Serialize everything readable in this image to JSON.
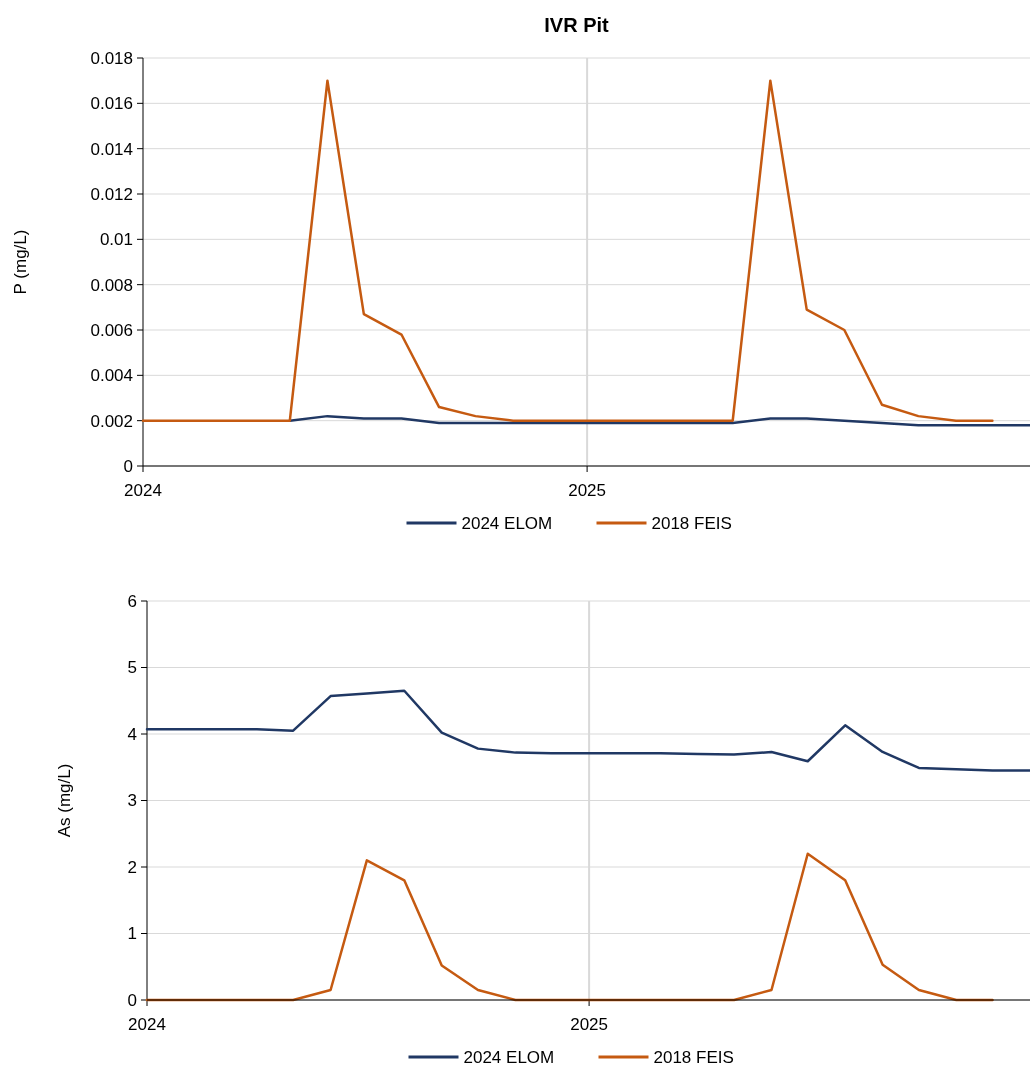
{
  "chart_data": [
    {
      "type": "line",
      "title": "IVR Pit",
      "ylabel": "P (mg/L)",
      "x": [
        "2024-01",
        "2024-02",
        "2024-03",
        "2024-04",
        "2024-05",
        "2024-06",
        "2024-07",
        "2024-08",
        "2024-09",
        "2024-10",
        "2024-11",
        "2024-12",
        "2025-01",
        "2025-02",
        "2025-03",
        "2025-04",
        "2025-05",
        "2025-06",
        "2025-07",
        "2025-08",
        "2025-09",
        "2025-10",
        "2025-11",
        "2025-12",
        "2026-01"
      ],
      "xlim": [
        "2024-01",
        "2026-01"
      ],
      "xticks": [
        "2024",
        "2025"
      ],
      "ylim": [
        0,
        0.018
      ],
      "yticks": [
        0,
        0.002,
        0.004,
        0.006,
        0.008,
        0.01,
        0.012,
        0.014,
        0.016,
        0.018
      ],
      "grid": "y",
      "ref_lines": [
        {
          "axis": "x",
          "value": "2025-01-01",
          "color": "#d9d9d9"
        }
      ],
      "legend": "bottom",
      "marker": "none",
      "line_style": "solid",
      "series": [
        {
          "name": "2024 ELOM",
          "color": "#203864",
          "values": [
            null,
            null,
            null,
            null,
            0.002,
            0.0022,
            0.0021,
            0.0021,
            0.0019,
            0.0019,
            0.0019,
            0.0019,
            0.0019,
            0.0019,
            0.0019,
            0.0019,
            0.0019,
            0.0021,
            0.0021,
            0.002,
            0.0019,
            0.0018,
            0.0018,
            0.0018,
            0.0018
          ]
        },
        {
          "name": "2018 FEIS",
          "color": "#c55a11",
          "values": [
            0.002,
            0.002,
            0.002,
            0.002,
            0.002,
            0.017,
            0.0067,
            0.0058,
            0.0026,
            0.0022,
            0.002,
            0.002,
            0.002,
            0.002,
            0.002,
            0.002,
            0.002,
            0.017,
            0.0069,
            0.006,
            0.0027,
            0.0022,
            0.002,
            0.002,
            null
          ]
        }
      ]
    },
    {
      "type": "line",
      "ylabel": "As (mg/L)",
      "x": [
        "2024-01",
        "2024-02",
        "2024-03",
        "2024-04",
        "2024-05",
        "2024-06",
        "2024-07",
        "2024-08",
        "2024-09",
        "2024-10",
        "2024-11",
        "2024-12",
        "2025-01",
        "2025-02",
        "2025-03",
        "2025-04",
        "2025-05",
        "2025-06",
        "2025-07",
        "2025-08",
        "2025-09",
        "2025-10",
        "2025-11",
        "2025-12",
        "2026-01"
      ],
      "xlim": [
        "2024-01",
        "2026-01"
      ],
      "xticks": [
        "2024",
        "2025"
      ],
      "ylim": [
        0,
        6
      ],
      "yticks": [
        0,
        1,
        2,
        3,
        4,
        5,
        6
      ],
      "grid": "y",
      "ref_lines": [
        {
          "axis": "x",
          "value": "2025-01-01",
          "color": "#d9d9d9"
        }
      ],
      "legend": "bottom",
      "marker": "none",
      "line_style": "solid",
      "series": [
        {
          "name": "2024 ELOM",
          "color": "#203864",
          "values": [
            4.07,
            4.07,
            4.07,
            4.07,
            4.05,
            4.57,
            4.61,
            4.65,
            4.02,
            3.78,
            3.72,
            3.71,
            3.71,
            3.71,
            3.71,
            3.7,
            3.69,
            3.73,
            3.59,
            4.13,
            3.73,
            3.49,
            3.47,
            3.45,
            3.45
          ]
        },
        {
          "name": "2018 FEIS",
          "color": "#c55a11",
          "values": [
            0,
            0,
            0,
            0,
            0,
            0.15,
            2.1,
            1.8,
            0.52,
            0.15,
            0,
            0,
            0,
            0,
            0,
            0,
            0,
            0.15,
            2.2,
            1.8,
            0.53,
            0.15,
            0,
            0,
            null
          ]
        }
      ]
    }
  ]
}
